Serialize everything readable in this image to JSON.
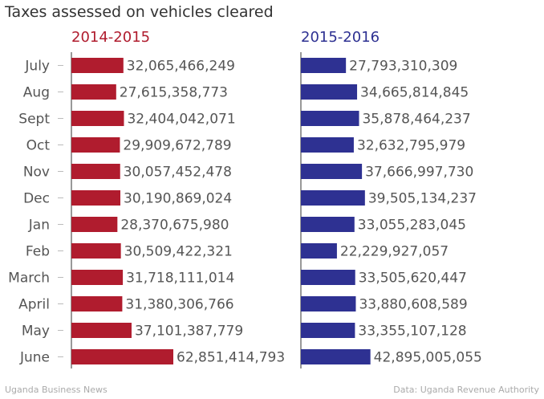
{
  "title": "Taxes assessed on vehicles cleared",
  "footer": {
    "left": "Uganda Business News",
    "right": "Data: Uganda Revenue Authority"
  },
  "chart_data": [
    {
      "type": "bar",
      "orientation": "horizontal",
      "title": "2014-2015",
      "color": "#b01c2e",
      "categories": [
        "July",
        "Aug",
        "Sept",
        "Oct",
        "Nov",
        "Dec",
        "Jan",
        "Feb",
        "March",
        "April",
        "May",
        "June"
      ],
      "values": [
        32065466249,
        27615358773,
        32404042071,
        29909672789,
        30057452478,
        30190869024,
        28370675980,
        30509422321,
        31718111014,
        31380306766,
        37101387779,
        62851414793
      ],
      "value_labels": [
        "32,065,466,249",
        "27,615,358,773",
        "32,404,042,071",
        "29,909,672,789",
        "30,057,452,478",
        "30,190,869,024",
        "28,370,675,980",
        "30,509,422,321",
        "31,718,111,014",
        "31,380,306,766",
        "37,101,387,779",
        "62,851,414,793"
      ],
      "xlim": [
        0,
        62851414793
      ],
      "grid": false,
      "legend": "none"
    },
    {
      "type": "bar",
      "orientation": "horizontal",
      "title": "2015-2016",
      "color": "#2e3192",
      "categories": [
        "July",
        "Aug",
        "Sept",
        "Oct",
        "Nov",
        "Dec",
        "Jan",
        "Feb",
        "March",
        "April",
        "May",
        "June"
      ],
      "values": [
        27793310309,
        34665814845,
        35878464237,
        32632795979,
        37666997730,
        39505134237,
        33055283045,
        22229927057,
        33505620447,
        33880608589,
        33355107128,
        42895005055
      ],
      "value_labels": [
        "27,793,310,309",
        "34,665,814,845",
        "35,878,464,237",
        "32,632,795,979",
        "37,666,997,730",
        "39,505,134,237",
        "33,055,283,045",
        "22,229,927,057",
        "33,505,620,447",
        "33,880,608,589",
        "33,355,107,128",
        "42,895,005,055"
      ],
      "xlim": [
        0,
        62851414793
      ],
      "grid": false,
      "legend": "none"
    }
  ]
}
